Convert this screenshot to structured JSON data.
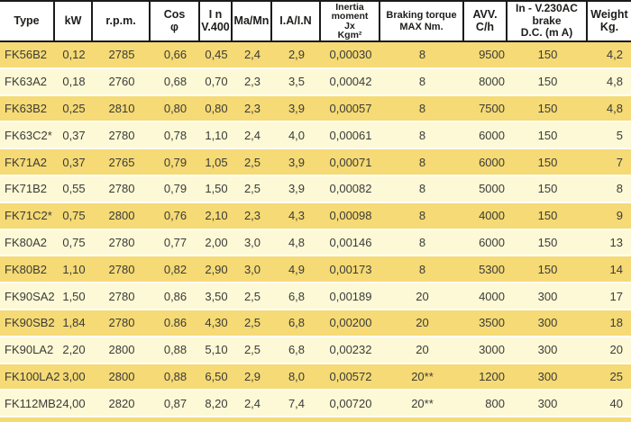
{
  "colors": {
    "row_dark": "#f5da75",
    "row_light": "#fdf9d6",
    "header_background": "#ffffff",
    "border": "#1a1a1a",
    "row_separator": "#fffef5",
    "header_text": "#1d1d1b",
    "body_text": "#3b3b39"
  },
  "table": {
    "columns": [
      {
        "id": "type",
        "label": "Type"
      },
      {
        "id": "kw",
        "label": "kW"
      },
      {
        "id": "rpm",
        "label": "r.p.m."
      },
      {
        "id": "cos-phi",
        "label": "Cos\nφ"
      },
      {
        "id": "in-v400",
        "label": "I n\nV.400"
      },
      {
        "id": "ma-mn",
        "label": "Ma/Mn"
      },
      {
        "id": "ia-in",
        "label": "I.A/I.N"
      },
      {
        "id": "inertia",
        "label": "Inertia\nmoment\nJx\nKgm²"
      },
      {
        "id": "braking-torque",
        "label": "Braking torque\nMAX Nm."
      },
      {
        "id": "avv",
        "label": "AVV.\nC/h"
      },
      {
        "id": "brake-dc",
        "label": "In - V.230AC\nbrake\nD.C. (m A)"
      },
      {
        "id": "weight",
        "label": "Weight\nKg."
      }
    ],
    "rows": [
      [
        "FK56B2",
        "0,12",
        "2785",
        "0,66",
        "0,45",
        "2,4",
        "2,9",
        "0,00030",
        "8",
        "9500",
        "150",
        "4,2"
      ],
      [
        "FK63A2",
        "0,18",
        "2760",
        "0,68",
        "0,70",
        "2,3",
        "3,5",
        "0,00042",
        "8",
        "8000",
        "150",
        "4,8"
      ],
      [
        "FK63B2",
        "0,25",
        "2810",
        "0,80",
        "0,80",
        "2,3",
        "3,9",
        "0,00057",
        "8",
        "7500",
        "150",
        "4,8"
      ],
      [
        "FK63C2*",
        "0,37",
        "2780",
        "0,78",
        "1,10",
        "2,4",
        "4,0",
        "0,00061",
        "8",
        "6000",
        "150",
        "5"
      ],
      [
        "FK71A2",
        "0,37",
        "2765",
        "0,79",
        "1,05",
        "2,5",
        "3,9",
        "0,00071",
        "8",
        "6000",
        "150",
        "7"
      ],
      [
        "FK71B2",
        "0,55",
        "2780",
        "0,79",
        "1,50",
        "2,5",
        "3,9",
        "0,00082",
        "8",
        "5000",
        "150",
        "8"
      ],
      [
        "FK71C2*",
        "0,75",
        "2800",
        "0,76",
        "2,10",
        "2,3",
        "4,3",
        "0,00098",
        "8",
        "4000",
        "150",
        "9"
      ],
      [
        "FK80A2",
        "0,75",
        "2780",
        "0,77",
        "2,00",
        "3,0",
        "4,8",
        "0,00146",
        "8",
        "6000",
        "150",
        "13"
      ],
      [
        "FK80B2",
        "1,10",
        "2780",
        "0,82",
        "2,90",
        "3,0",
        "4,9",
        "0,00173",
        "8",
        "5300",
        "150",
        "14"
      ],
      [
        "FK90SA2",
        "1,50",
        "2780",
        "0,86",
        "3,50",
        "2,5",
        "6,8",
        "0,00189",
        "20",
        "4000",
        "300",
        "17"
      ],
      [
        "FK90SB2",
        "1,84",
        "2780",
        "0.86",
        "4,30",
        "2,5",
        "6,8",
        "0,00200",
        "20",
        "3500",
        "300",
        "18"
      ],
      [
        "FK90LA2",
        "2,20",
        "2800",
        "0,88",
        "5,10",
        "2,5",
        "6,8",
        "0,00232",
        "20",
        "3000",
        "300",
        "20"
      ],
      [
        "FK100LA2",
        "3,00",
        "2800",
        "0,88",
        "6,50",
        "2,9",
        "8,0",
        "0,00572",
        "20**",
        "1200",
        "300",
        "25"
      ],
      [
        "FK112MB2",
        "4,00",
        "2820",
        "0,87",
        "8,20",
        "2,4",
        "7,4",
        "0,00720",
        "20**",
        "800",
        "300",
        "40"
      ]
    ]
  }
}
